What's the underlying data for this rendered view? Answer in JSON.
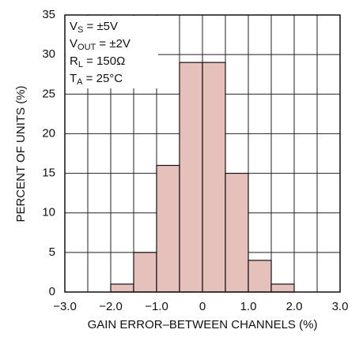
{
  "chart_data": {
    "type": "histogram",
    "xlabel": "GAIN ERROR–BETWEEN CHANNELS (%)",
    "ylabel": "PERCENT OF UNITS (%)",
    "bins": [
      -2.0,
      -1.5,
      -1.0,
      -0.5,
      0,
      0.5,
      1.0,
      1.5,
      2.0
    ],
    "values": [
      1,
      5,
      16,
      29,
      29,
      15,
      4,
      1
    ],
    "color": "#e6c1bc",
    "xlim": [
      -3,
      3
    ],
    "ylim": [
      0,
      35
    ],
    "xticks": [
      {
        "value": -3,
        "label": "−3.0"
      },
      {
        "value": -2,
        "label": "−2.0"
      },
      {
        "value": -1,
        "label": "−1.0"
      },
      0,
      {
        "value": 1,
        "label": "1.0"
      },
      {
        "value": 2,
        "label": "2.0"
      },
      {
        "value": 3,
        "label": "3.0"
      }
    ],
    "xminorticks": [
      -2.5,
      -1.5,
      -0.5,
      0.5,
      1.5,
      2.5
    ],
    "yticks": [
      0,
      5,
      10,
      15,
      20,
      25,
      30,
      35
    ],
    "grid": true,
    "annotations": [
      {
        "main": "V",
        "sub": "S",
        "rest": " = ±5V"
      },
      {
        "main": "V",
        "sub": "OUT",
        "rest": " = ±2V"
      },
      {
        "main": "R",
        "sub": "L",
        "rest": " = 150Ω"
      },
      {
        "main": "T",
        "sub": "A",
        "rest": " = 25°C"
      }
    ]
  }
}
